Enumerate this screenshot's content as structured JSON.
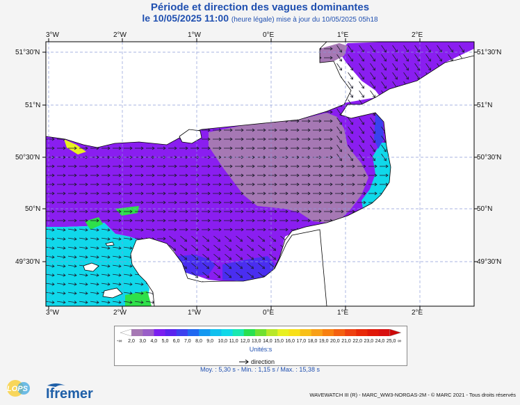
{
  "header": {
    "title": "Période et direction des vagues dominantes",
    "subtitle_main": "le 10/05/2025 11:00",
    "subtitle_note": "(heure légale) mise à jour du 10/05/2025 05h18"
  },
  "axes": {
    "lon_top": [
      "3°W",
      "2°W",
      "1°W",
      "0°E",
      "1°E",
      "2°E"
    ],
    "lon_bottom": [
      "3°W",
      "2°W",
      "1°W",
      "0°E",
      "1°E",
      "2°E"
    ],
    "lat_left": [
      "51°30'N",
      "51°N",
      "50°30'N",
      "50°N",
      "49°30'N"
    ],
    "lat_right": [
      "51°30'N",
      "51°N",
      "50°30'N",
      "50°N",
      "49°30'N"
    ]
  },
  "legend": {
    "labels": [
      "-∞",
      "2,0",
      "3,0",
      "4,0",
      "5,0",
      "6,0",
      "7,0",
      "8,0",
      "9,0",
      "10,0",
      "11,0",
      "12,0",
      "13,0",
      "14,0",
      "15,0",
      "16,0",
      "17,0",
      "18,0",
      "19,0",
      "20,0",
      "21,0",
      "22,0",
      "23,0",
      "24,0",
      "25,0",
      "∞"
    ],
    "colors": [
      "#ffffff",
      "#a678b4",
      "#9a5ec8",
      "#7a1ef0",
      "#5a22ee",
      "#3c40ee",
      "#2068f0",
      "#1498f0",
      "#10c0ee",
      "#10d8e8",
      "#1ae8b0",
      "#28e050",
      "#70e030",
      "#b8e828",
      "#e8f020",
      "#f8e018",
      "#f8c018",
      "#f8a018",
      "#f88010",
      "#f46010",
      "#ee4010",
      "#e82808",
      "#e01808",
      "#d81010",
      "#cc0808"
    ],
    "units": "Unités:s",
    "direction_label": "direction",
    "stats": "Moy. : 5,30 s   -   Min. : 1,15 s / Max. : 15,38 s"
  },
  "footer": {
    "credit": "WAVEWATCH III (R) - MARC_WW3-NORGAS-2M - © MARC 2021 - Tous droits réservés",
    "logo_lops": "LOPS",
    "logo_ifremer": "Ifremer"
  },
  "map": {
    "sea_colors": {
      "violet": "#8a1ef0",
      "lavender": "#a678b4",
      "blue": "#4a2ef0",
      "cyan": "#10d8ea",
      "green": "#2ee04a",
      "yellow": "#e8f020",
      "land": "#ffffff"
    },
    "arrow_heading": "east-northeast to east"
  }
}
